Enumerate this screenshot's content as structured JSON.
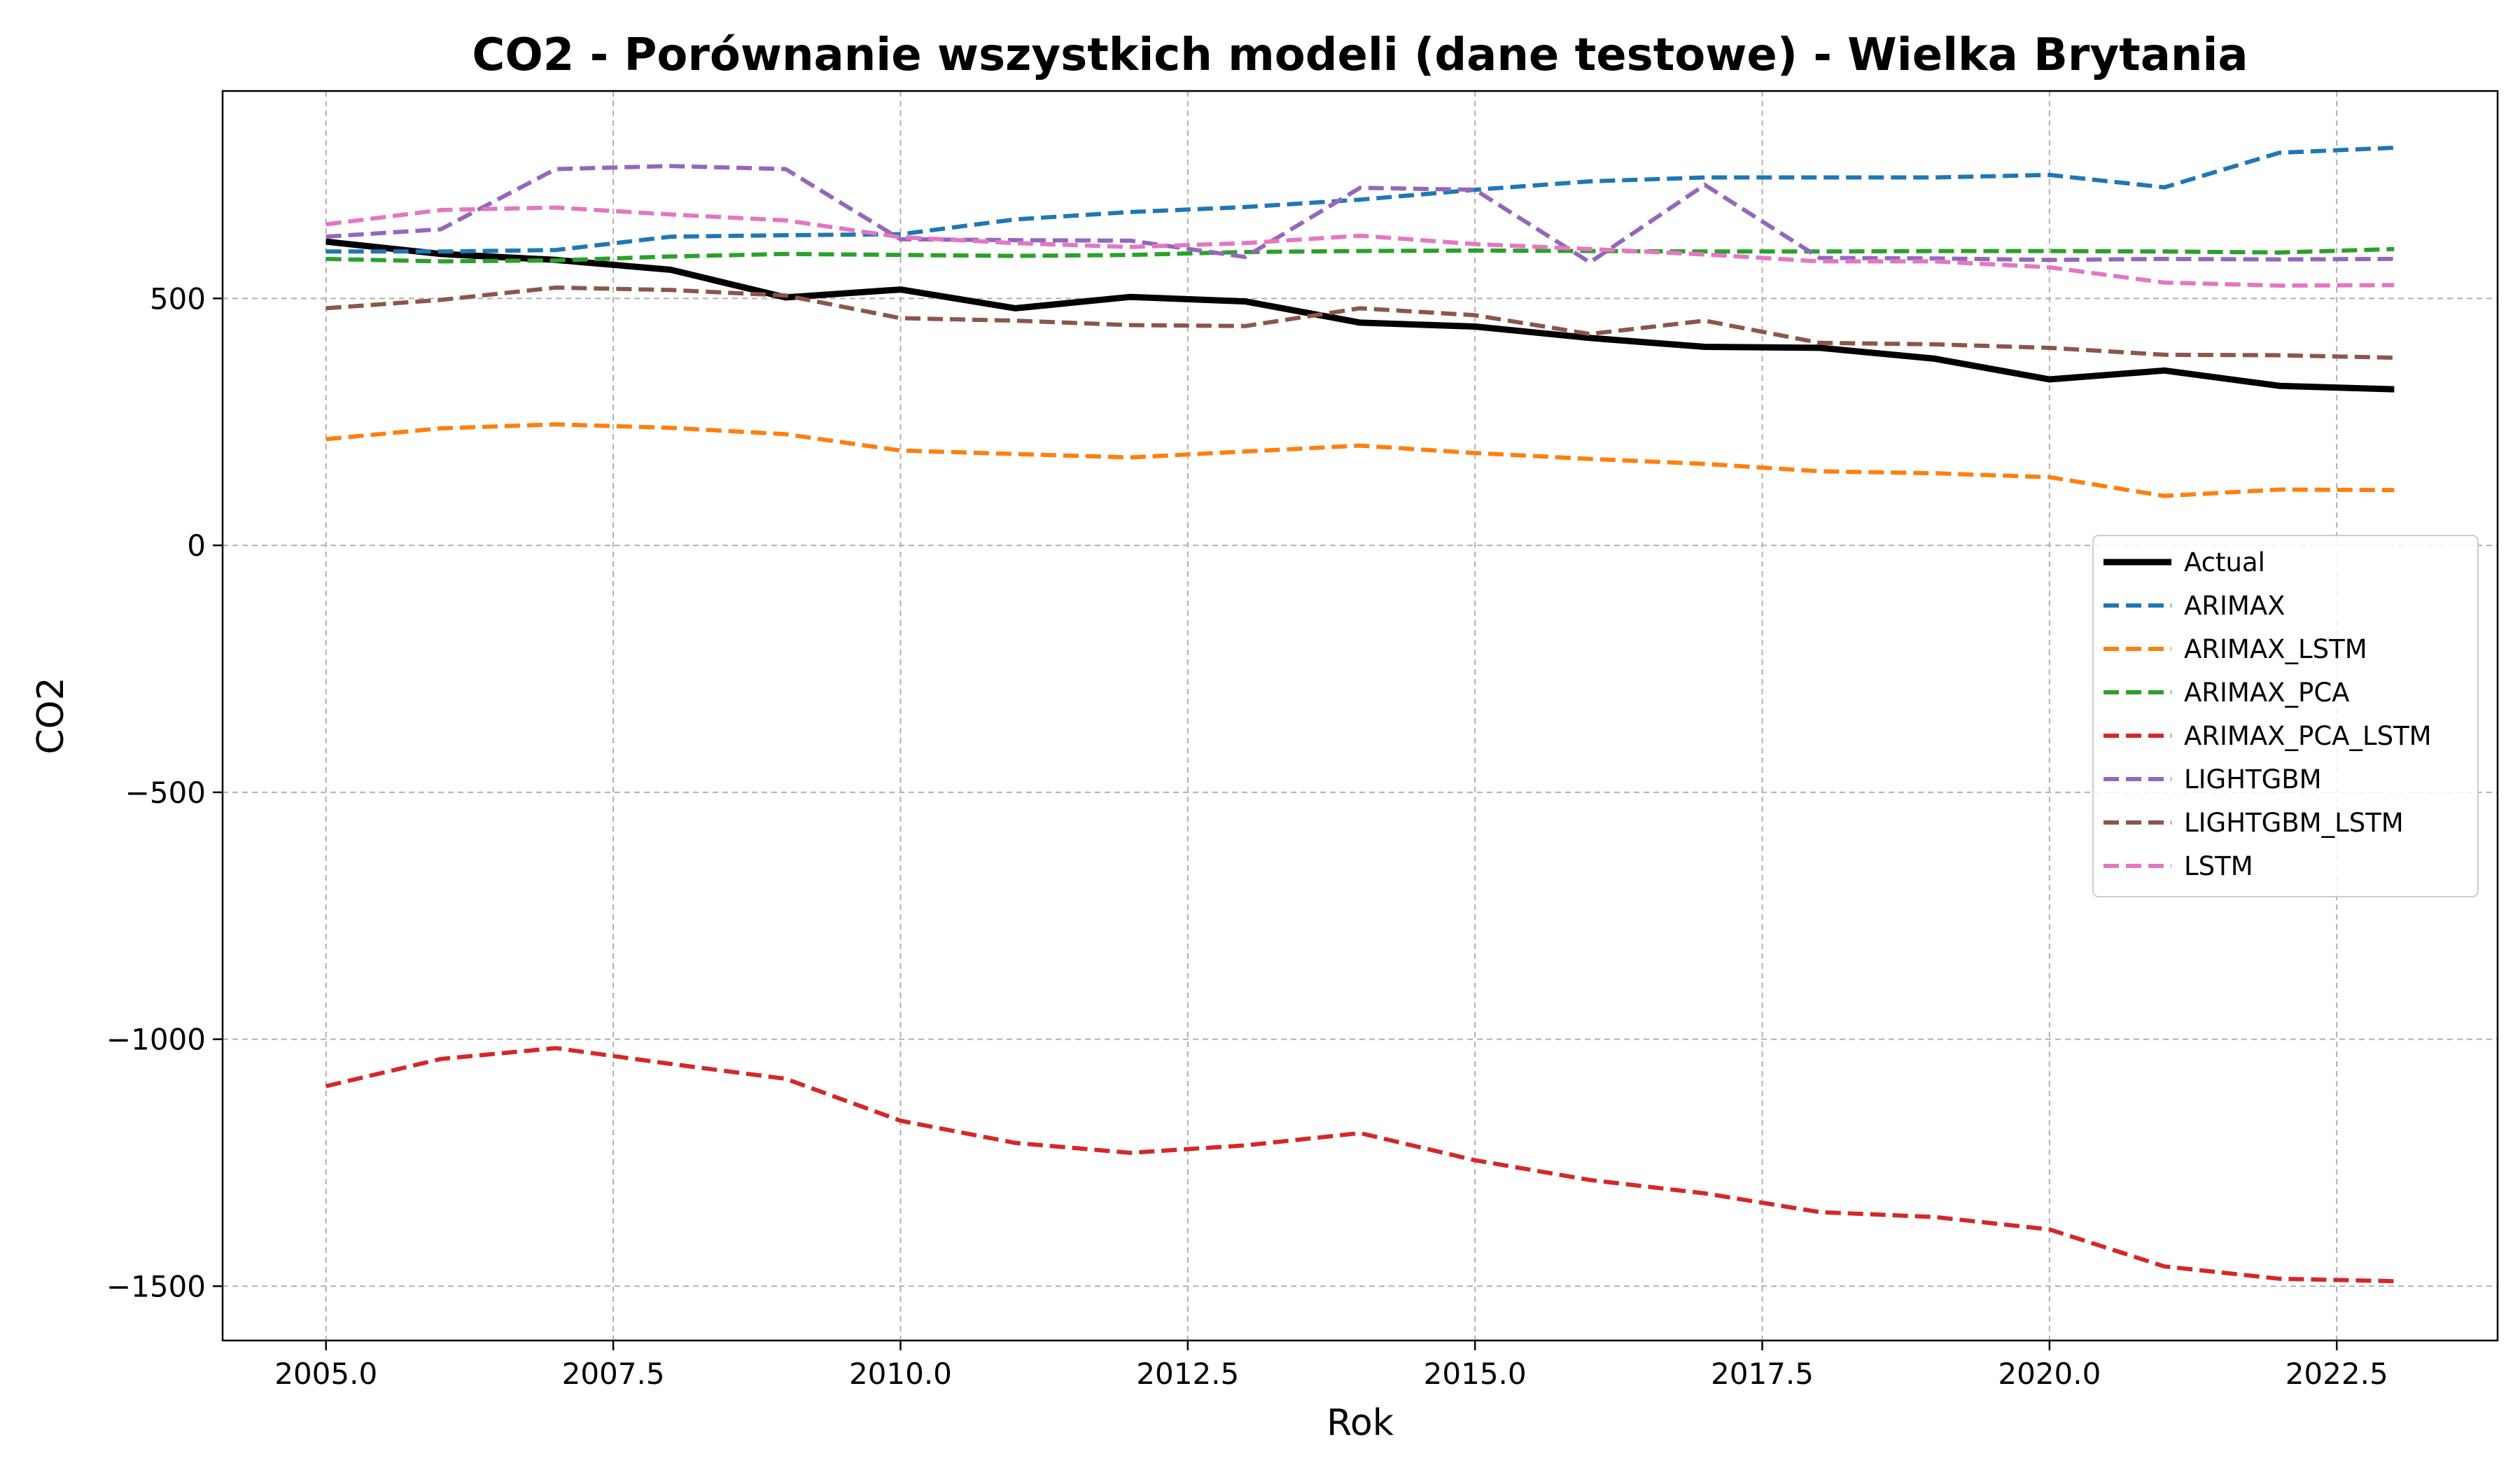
{
  "chart_data": {
    "type": "line",
    "title": "CO2 - Porównanie wszystkich modeli (dane testowe) - Wielka Brytania",
    "xlabel": "Rok",
    "ylabel": "CO2",
    "xlim": [
      2004.1,
      2023.9
    ],
    "ylim": [
      -1610,
      920
    ],
    "x_ticks": [
      2005,
      2007.5,
      2010,
      2012.5,
      2015,
      2017.5,
      2020,
      2022.5
    ],
    "x_tick_labels": [
      "2005.0",
      "2007.5",
      "2010.0",
      "2012.5",
      "2015.0",
      "2017.5",
      "2020.0",
      "2022.5"
    ],
    "y_ticks": [
      500,
      0,
      -500,
      -1000,
      -1500
    ],
    "y_tick_labels": [
      "500",
      "0",
      "−500",
      "−1000",
      "−1500"
    ],
    "grid": true,
    "legend_position": "center-right",
    "x": [
      2005,
      2006,
      2007,
      2008,
      2009,
      2010,
      2011,
      2012,
      2013,
      2014,
      2015,
      2016,
      2017,
      2018,
      2019,
      2020,
      2021,
      2022,
      2023
    ],
    "series": [
      {
        "name": "Actual",
        "color": "#000000",
        "style": "solid",
        "values": [
          615,
          590,
          578,
          558,
          502,
          518,
          480,
          503,
          494,
          451,
          443,
          420,
          402,
          400,
          378,
          336,
          354,
          323,
          316
        ]
      },
      {
        "name": "ARIMAX",
        "color": "#1f77b4",
        "style": "dashed",
        "values": [
          595,
          595,
          598,
          625,
          628,
          630,
          660,
          675,
          685,
          700,
          720,
          737,
          745,
          745,
          745,
          750,
          725,
          795,
          805
        ]
      },
      {
        "name": "ARIMAX_LSTM",
        "color": "#ff7f0e",
        "style": "dashed",
        "values": [
          215,
          237,
          245,
          238,
          225,
          192,
          185,
          178,
          190,
          202,
          187,
          175,
          165,
          150,
          146,
          138,
          100,
          113,
          112
        ]
      },
      {
        "name": "ARIMAX_PCA",
        "color": "#2ca02c",
        "style": "dashed",
        "values": [
          580,
          575,
          577,
          585,
          590,
          588,
          586,
          588,
          594,
          596,
          597,
          596,
          595,
          595,
          596,
          596,
          595,
          593,
          600
        ]
      },
      {
        "name": "ARIMAX_PCA_LSTM",
        "color": "#d62728",
        "style": "dashed",
        "values": [
          -1095,
          -1040,
          -1018,
          -1050,
          -1080,
          -1165,
          -1210,
          -1230,
          -1215,
          -1190,
          -1245,
          -1285,
          -1312,
          -1350,
          -1360,
          -1385,
          -1460,
          -1485,
          -1490
        ]
      },
      {
        "name": "LIGHTGBM",
        "color": "#9467bd",
        "style": "dashed",
        "values": [
          625,
          640,
          762,
          768,
          762,
          620,
          618,
          617,
          584,
          724,
          720,
          573,
          730,
          582,
          581,
          578,
          580,
          579,
          580
        ]
      },
      {
        "name": "LIGHTGBM_LSTM",
        "color": "#8c564b",
        "style": "dashed",
        "values": [
          480,
          497,
          522,
          517,
          506,
          460,
          455,
          446,
          444,
          480,
          466,
          428,
          455,
          410,
          407,
          400,
          386,
          385,
          380
        ]
      },
      {
        "name": "LSTM",
        "color": "#e377c2",
        "style": "dashed",
        "values": [
          650,
          679,
          684,
          670,
          658,
          624,
          612,
          604,
          612,
          627,
          610,
          600,
          589,
          575,
          575,
          563,
          532,
          526,
          527
        ]
      }
    ]
  }
}
